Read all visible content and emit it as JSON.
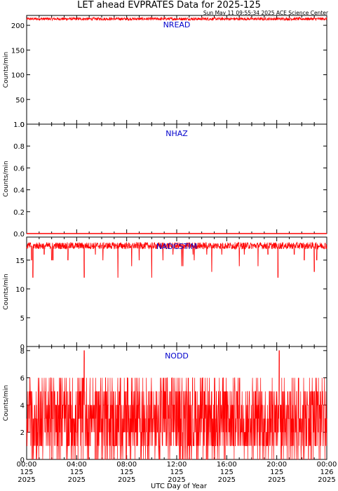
{
  "header": {
    "title": "LET ahead EVPRATES Data for 2025-125",
    "timestamp": "Sun May 11 09:55:34 2025 ACE Science Center"
  },
  "xaxis": {
    "label": "UTC Day of Year",
    "ticks": [
      {
        "time": "00:00",
        "doy": "125",
        "year": "2025"
      },
      {
        "time": "04:00",
        "doy": "125",
        "year": "2025"
      },
      {
        "time": "08:00",
        "doy": "125",
        "year": "2025"
      },
      {
        "time": "12:00",
        "doy": "125",
        "year": "2025"
      },
      {
        "time": "16:00",
        "doy": "125",
        "year": "2025"
      },
      {
        "time": "20:00",
        "doy": "125",
        "year": "2025"
      },
      {
        "time": "00:00",
        "doy": "126",
        "year": "2025"
      }
    ]
  },
  "colors": {
    "series": "#ff0000",
    "label": "#0000cc",
    "axis": "#000000"
  },
  "chart_data": [
    {
      "type": "line",
      "series_label": "NREAD",
      "ylabel": "Counts/min",
      "ylim": [
        0,
        220
      ],
      "yticks": [
        0,
        50,
        100,
        150,
        200
      ],
      "xlim_hours": [
        0,
        24
      ],
      "pattern": {
        "base": 213,
        "noise": 3,
        "dips": []
      }
    },
    {
      "type": "line",
      "series_label": "NHAZ",
      "ylabel": "Counts/min",
      "ylim": [
        0,
        1
      ],
      "yticks": [
        0.0,
        0.2,
        0.4,
        0.6,
        0.8,
        1.0
      ],
      "yticks_text": [
        "0.0",
        "0.2",
        "0.4",
        "0.6",
        "0.8",
        "1.0"
      ],
      "xlim_hours": [
        0,
        24
      ],
      "pattern": {
        "base": 0,
        "noise": 0,
        "dips": []
      }
    },
    {
      "type": "line",
      "series_label": "NADCSTIM",
      "ylabel": "Counts/min",
      "ylim": [
        0,
        19
      ],
      "yticks": [
        0,
        5,
        10,
        15
      ],
      "xlim_hours": [
        0,
        24
      ],
      "pattern": {
        "base": 17.5,
        "noise": 0.6,
        "dips": [
          [
            0.4,
            15
          ],
          [
            0.5,
            12
          ],
          [
            1.4,
            16
          ],
          [
            2.0,
            15
          ],
          [
            2.1,
            15
          ],
          [
            3.3,
            15
          ],
          [
            4.6,
            12
          ],
          [
            5.5,
            16
          ],
          [
            6.1,
            15
          ],
          [
            7.3,
            12
          ],
          [
            8.4,
            14
          ],
          [
            9.0,
            15
          ],
          [
            10.0,
            12
          ],
          [
            10.9,
            15
          ],
          [
            11.7,
            16
          ],
          [
            12.4,
            14
          ],
          [
            12.5,
            14
          ],
          [
            13.3,
            16
          ],
          [
            13.4,
            15
          ],
          [
            14.4,
            16
          ],
          [
            14.8,
            13
          ],
          [
            15.6,
            16
          ],
          [
            17.0,
            14
          ],
          [
            17.4,
            16
          ],
          [
            18.5,
            14
          ],
          [
            19.3,
            16
          ],
          [
            20.1,
            12
          ],
          [
            21.4,
            16
          ],
          [
            22.2,
            15
          ],
          [
            23.0,
            13
          ],
          [
            23.2,
            15
          ]
        ]
      }
    },
    {
      "type": "line",
      "series_label": "NODD",
      "ylabel": "Counts/min",
      "ylim": [
        0,
        8.3
      ],
      "yticks": [
        0,
        2,
        4,
        6,
        8
      ],
      "xlim_hours": [
        0,
        24
      ],
      "pattern": {
        "base": 2.5,
        "noise": 2.5,
        "range": [
          0,
          8
        ],
        "spikes": [
          [
            4.6,
            8
          ],
          [
            20.2,
            8
          ]
        ]
      }
    }
  ]
}
